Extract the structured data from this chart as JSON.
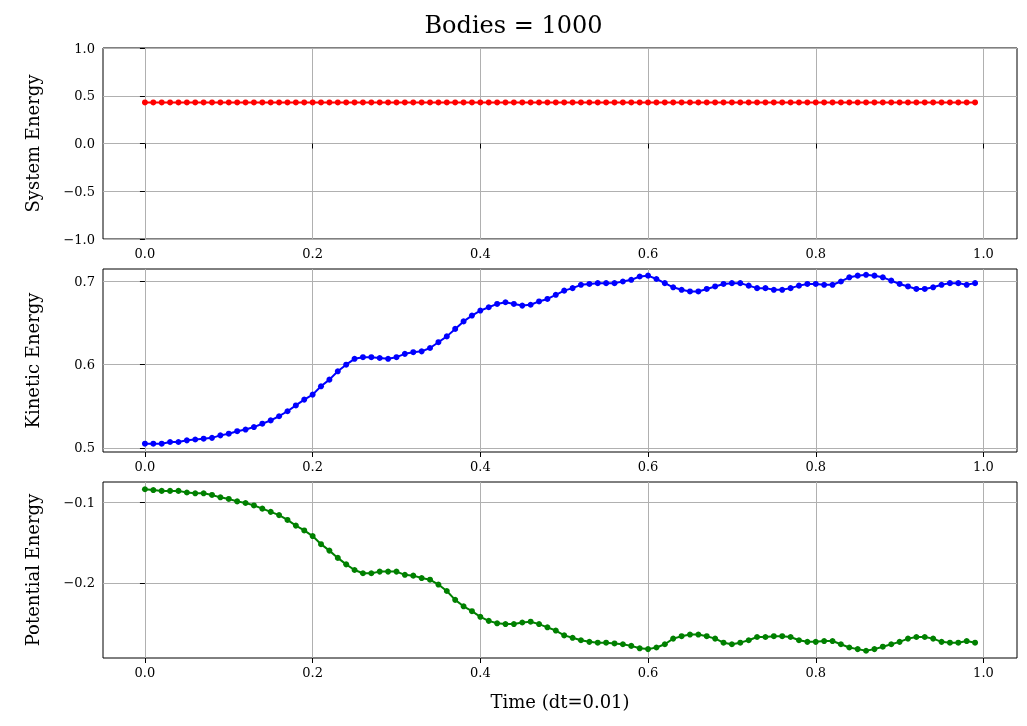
{
  "chart_data": [
    {
      "type": "line",
      "title": "Bodies = 1000",
      "ylabel": "System Energy",
      "marker": "circle",
      "grid": true,
      "xlim": [
        -0.05,
        1.04
      ],
      "xticks": [
        {
          "value": 0,
          "label": "0.0"
        },
        {
          "value": 0.2,
          "label": "0.2"
        },
        {
          "value": 0.4,
          "label": "0.4"
        },
        {
          "value": 0.6,
          "label": "0.6"
        },
        {
          "value": 0.8,
          "label": "0.8"
        },
        {
          "value": 1,
          "label": "1.0"
        }
      ],
      "ylim": [
        -1,
        1
      ],
      "yticks": [
        {
          "value": -1,
          "label": "−1.0"
        },
        {
          "value": -0.5,
          "label": "−0.5"
        },
        {
          "value": 0,
          "label": "0.0"
        },
        {
          "value": 0.5,
          "label": "0.5"
        },
        {
          "value": 1,
          "label": "1.0"
        }
      ],
      "x": [
        0,
        0.01,
        0.02,
        0.03,
        0.04,
        0.05,
        0.06,
        0.07,
        0.08,
        0.09,
        0.1,
        0.11,
        0.12,
        0.13,
        0.14,
        0.15,
        0.16,
        0.17,
        0.18,
        0.19,
        0.2,
        0.21,
        0.22,
        0.23,
        0.24,
        0.25,
        0.26,
        0.27,
        0.28,
        0.29,
        0.3,
        0.31,
        0.32,
        0.33,
        0.34,
        0.35,
        0.36,
        0.37,
        0.38,
        0.39,
        0.4,
        0.41,
        0.42,
        0.43,
        0.44,
        0.45,
        0.46,
        0.47,
        0.48,
        0.49,
        0.5,
        0.51,
        0.52,
        0.53,
        0.54,
        0.55,
        0.56,
        0.57,
        0.58,
        0.59,
        0.6,
        0.61,
        0.62,
        0.63,
        0.64,
        0.65,
        0.66,
        0.67,
        0.68,
        0.69,
        0.7,
        0.71,
        0.72,
        0.73,
        0.74,
        0.75,
        0.76,
        0.77,
        0.78,
        0.79,
        0.8,
        0.81,
        0.82,
        0.83,
        0.84,
        0.85,
        0.86,
        0.87,
        0.88,
        0.89,
        0.9,
        0.91,
        0.92,
        0.93,
        0.94,
        0.95,
        0.96,
        0.97,
        0.98,
        0.99
      ],
      "series": [
        {
          "color": "#ff0000",
          "values": [
            0.43,
            0.43,
            0.43,
            0.43,
            0.43,
            0.43,
            0.43,
            0.43,
            0.43,
            0.43,
            0.43,
            0.43,
            0.43,
            0.43,
            0.43,
            0.43,
            0.43,
            0.43,
            0.43,
            0.43,
            0.43,
            0.43,
            0.43,
            0.43,
            0.43,
            0.43,
            0.43,
            0.43,
            0.43,
            0.43,
            0.43,
            0.43,
            0.43,
            0.43,
            0.43,
            0.43,
            0.43,
            0.43,
            0.43,
            0.43,
            0.43,
            0.43,
            0.43,
            0.43,
            0.43,
            0.43,
            0.43,
            0.43,
            0.43,
            0.43,
            0.43,
            0.43,
            0.43,
            0.43,
            0.43,
            0.43,
            0.43,
            0.43,
            0.43,
            0.43,
            0.43,
            0.43,
            0.43,
            0.43,
            0.43,
            0.43,
            0.43,
            0.43,
            0.43,
            0.43,
            0.43,
            0.43,
            0.43,
            0.43,
            0.43,
            0.43,
            0.43,
            0.43,
            0.43,
            0.43,
            0.43,
            0.43,
            0.43,
            0.43,
            0.43,
            0.43,
            0.43,
            0.43,
            0.43,
            0.43,
            0.43,
            0.43,
            0.43,
            0.43,
            0.43,
            0.43,
            0.43,
            0.43,
            0.43,
            0.43
          ]
        }
      ]
    },
    {
      "type": "line",
      "ylabel": "Kinetic Energy",
      "marker": "circle",
      "grid": true,
      "xlim": [
        -0.05,
        1.04
      ],
      "xticks": [
        {
          "value": 0,
          "label": "0.0"
        },
        {
          "value": 0.2,
          "label": "0.2"
        },
        {
          "value": 0.4,
          "label": "0.4"
        },
        {
          "value": 0.6,
          "label": "0.6"
        },
        {
          "value": 0.8,
          "label": "0.8"
        },
        {
          "value": 1,
          "label": "1.0"
        }
      ],
      "ylim": [
        0.495,
        0.715
      ],
      "yticks": [
        {
          "value": 0.5,
          "label": "0.5"
        },
        {
          "value": 0.6,
          "label": "0.6"
        },
        {
          "value": 0.7,
          "label": "0.7"
        }
      ],
      "x": [
        0,
        0.01,
        0.02,
        0.03,
        0.04,
        0.05,
        0.06,
        0.07,
        0.08,
        0.09,
        0.1,
        0.11,
        0.12,
        0.13,
        0.14,
        0.15,
        0.16,
        0.17,
        0.18,
        0.19,
        0.2,
        0.21,
        0.22,
        0.23,
        0.24,
        0.25,
        0.26,
        0.27,
        0.28,
        0.29,
        0.3,
        0.31,
        0.32,
        0.33,
        0.34,
        0.35,
        0.36,
        0.37,
        0.38,
        0.39,
        0.4,
        0.41,
        0.42,
        0.43,
        0.44,
        0.45,
        0.46,
        0.47,
        0.48,
        0.49,
        0.5,
        0.51,
        0.52,
        0.53,
        0.54,
        0.55,
        0.56,
        0.57,
        0.58,
        0.59,
        0.6,
        0.61,
        0.62,
        0.63,
        0.64,
        0.65,
        0.66,
        0.67,
        0.68,
        0.69,
        0.7,
        0.71,
        0.72,
        0.73,
        0.74,
        0.75,
        0.76,
        0.77,
        0.78,
        0.79,
        0.8,
        0.81,
        0.82,
        0.83,
        0.84,
        0.85,
        0.86,
        0.87,
        0.88,
        0.89,
        0.9,
        0.91,
        0.92,
        0.93,
        0.94,
        0.95,
        0.96,
        0.97,
        0.98,
        0.99
      ],
      "series": [
        {
          "color": "#0000ff",
          "values": [
            0.505,
            0.505,
            0.505,
            0.507,
            0.507,
            0.509,
            0.51,
            0.511,
            0.512,
            0.515,
            0.517,
            0.52,
            0.522,
            0.525,
            0.529,
            0.533,
            0.538,
            0.544,
            0.551,
            0.558,
            0.564,
            0.574,
            0.582,
            0.592,
            0.6,
            0.607,
            0.609,
            0.609,
            0.608,
            0.607,
            0.609,
            0.613,
            0.615,
            0.616,
            0.62,
            0.627,
            0.634,
            0.643,
            0.652,
            0.659,
            0.665,
            0.669,
            0.673,
            0.675,
            0.673,
            0.671,
            0.672,
            0.676,
            0.679,
            0.684,
            0.689,
            0.692,
            0.696,
            0.697,
            0.698,
            0.698,
            0.698,
            0.7,
            0.702,
            0.706,
            0.707,
            0.703,
            0.698,
            0.693,
            0.69,
            0.688,
            0.688,
            0.691,
            0.694,
            0.697,
            0.698,
            0.698,
            0.695,
            0.692,
            0.692,
            0.69,
            0.69,
            0.692,
            0.695,
            0.697,
            0.697,
            0.696,
            0.696,
            0.7,
            0.705,
            0.707,
            0.708,
            0.707,
            0.705,
            0.701,
            0.697,
            0.694,
            0.691,
            0.691,
            0.693,
            0.696,
            0.698,
            0.698,
            0.696,
            0.698
          ]
        }
      ]
    },
    {
      "type": "line",
      "ylabel": "Potential Energy",
      "xlabel": "Time (dt=0.01)",
      "marker": "circle",
      "grid": true,
      "xlim": [
        -0.05,
        1.04
      ],
      "xticks": [
        {
          "value": 0,
          "label": "0.0"
        },
        {
          "value": 0.2,
          "label": "0.2"
        },
        {
          "value": 0.4,
          "label": "0.4"
        },
        {
          "value": 0.6,
          "label": "0.6"
        },
        {
          "value": 0.8,
          "label": "0.8"
        },
        {
          "value": 1,
          "label": "1.0"
        }
      ],
      "ylim": [
        -0.293,
        -0.075
      ],
      "yticks": [
        {
          "value": -0.2,
          "label": "−0.2"
        },
        {
          "value": -0.1,
          "label": "−0.1"
        }
      ],
      "x": [
        0,
        0.01,
        0.02,
        0.03,
        0.04,
        0.05,
        0.06,
        0.07,
        0.08,
        0.09,
        0.1,
        0.11,
        0.12,
        0.13,
        0.14,
        0.15,
        0.16,
        0.17,
        0.18,
        0.19,
        0.2,
        0.21,
        0.22,
        0.23,
        0.24,
        0.25,
        0.26,
        0.27,
        0.28,
        0.29,
        0.3,
        0.31,
        0.32,
        0.33,
        0.34,
        0.35,
        0.36,
        0.37,
        0.38,
        0.39,
        0.4,
        0.41,
        0.42,
        0.43,
        0.44,
        0.45,
        0.46,
        0.47,
        0.48,
        0.49,
        0.5,
        0.51,
        0.52,
        0.53,
        0.54,
        0.55,
        0.56,
        0.57,
        0.58,
        0.59,
        0.6,
        0.61,
        0.62,
        0.63,
        0.64,
        0.65,
        0.66,
        0.67,
        0.68,
        0.69,
        0.7,
        0.71,
        0.72,
        0.73,
        0.74,
        0.75,
        0.76,
        0.77,
        0.78,
        0.79,
        0.8,
        0.81,
        0.82,
        0.83,
        0.84,
        0.85,
        0.86,
        0.87,
        0.88,
        0.89,
        0.9,
        0.91,
        0.92,
        0.93,
        0.94,
        0.95,
        0.96,
        0.97,
        0.98,
        0.99
      ],
      "series": [
        {
          "color": "#008000",
          "values": [
            -0.084,
            -0.085,
            -0.086,
            -0.086,
            -0.086,
            -0.088,
            -0.089,
            -0.089,
            -0.091,
            -0.094,
            -0.096,
            -0.099,
            -0.101,
            -0.104,
            -0.108,
            -0.112,
            -0.116,
            -0.122,
            -0.129,
            -0.135,
            -0.142,
            -0.152,
            -0.16,
            -0.169,
            -0.177,
            -0.184,
            -0.188,
            -0.188,
            -0.186,
            -0.186,
            -0.186,
            -0.19,
            -0.191,
            -0.194,
            -0.196,
            -0.202,
            -0.21,
            -0.221,
            -0.229,
            -0.235,
            -0.242,
            -0.247,
            -0.25,
            -0.251,
            -0.251,
            -0.249,
            -0.248,
            -0.251,
            -0.255,
            -0.259,
            -0.265,
            -0.268,
            -0.271,
            -0.273,
            -0.274,
            -0.274,
            -0.275,
            -0.276,
            -0.278,
            -0.281,
            -0.282,
            -0.28,
            -0.276,
            -0.269,
            -0.266,
            -0.264,
            -0.264,
            -0.266,
            -0.269,
            -0.274,
            -0.276,
            -0.274,
            -0.271,
            -0.267,
            -0.267,
            -0.266,
            -0.266,
            -0.267,
            -0.271,
            -0.273,
            -0.273,
            -0.272,
            -0.272,
            -0.276,
            -0.28,
            -0.282,
            -0.284,
            -0.282,
            -0.279,
            -0.276,
            -0.273,
            -0.269,
            -0.267,
            -0.267,
            -0.269,
            -0.273,
            -0.274,
            -0.274,
            -0.272,
            -0.274
          ]
        }
      ]
    }
  ]
}
